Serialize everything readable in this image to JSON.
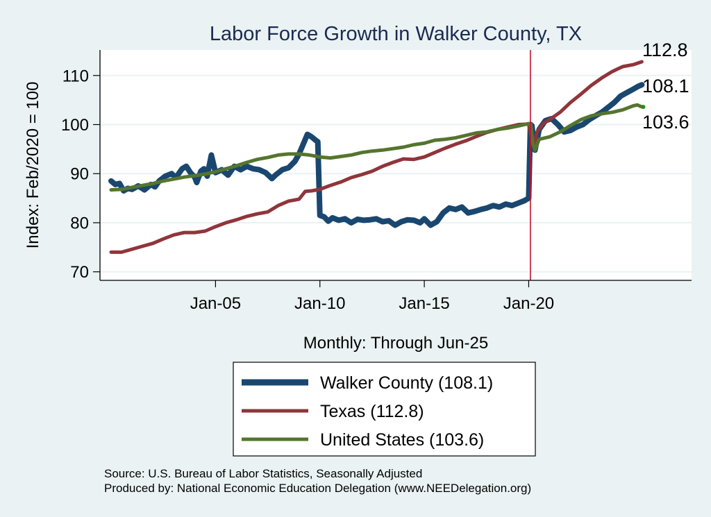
{
  "chart_data": {
    "type": "line",
    "title": "Labor Force Growth in Walker  County, TX",
    "xlabel": "Monthly: Through Jun-25",
    "ylabel": "Index: Feb/2020 = 100",
    "xlim": [
      1999.5,
      2027.8
    ],
    "ylim": [
      68.4,
      115.2
    ],
    "x_ticks": [
      {
        "value": 2005,
        "label": "Jan-05"
      },
      {
        "value": 2010,
        "label": "Jan-10"
      },
      {
        "value": 2015,
        "label": "Jan-15"
      },
      {
        "value": 2020,
        "label": "Jan-20"
      }
    ],
    "y_ticks": [
      70,
      80,
      90,
      100,
      110
    ],
    "grid": true,
    "reference_line": {
      "x": 2020.08,
      "color": "#c8102e"
    },
    "series": [
      {
        "name": "Walker  County",
        "legend": "Walker  County (108.1)",
        "end_label": "108.1",
        "color": "#1a476f",
        "x": [
          2000.0,
          2000.2,
          2000.4,
          2000.6,
          2000.8,
          2001.0,
          2001.3,
          2001.6,
          2001.9,
          2002.1,
          2002.3,
          2002.6,
          2002.9,
          2003.1,
          2003.4,
          2003.6,
          2003.8,
          2004.0,
          2004.1,
          2004.3,
          2004.45,
          2004.6,
          2004.8,
          2005.0,
          2005.3,
          2005.6,
          2005.9,
          2006.2,
          2006.5,
          2006.8,
          2007.1,
          2007.4,
          2007.7,
          2007.9,
          2008.2,
          2008.5,
          2008.8,
          2009.0,
          2009.2,
          2009.4,
          2009.6,
          2009.8,
          2009.9,
          2010.0,
          2010.2,
          2010.4,
          2010.6,
          2010.9,
          2011.2,
          2011.5,
          2011.8,
          2012.1,
          2012.4,
          2012.7,
          2013.0,
          2013.3,
          2013.6,
          2013.9,
          2014.2,
          2014.5,
          2014.8,
          2015.0,
          2015.3,
          2015.6,
          2015.9,
          2016.2,
          2016.5,
          2016.8,
          2017.1,
          2017.4,
          2017.7,
          2018.0,
          2018.3,
          2018.6,
          2018.9,
          2019.2,
          2019.5,
          2019.8,
          2020.0,
          2020.08,
          2020.15,
          2020.3,
          2020.5,
          2020.8,
          2021.1,
          2021.4,
          2021.7,
          2022.0,
          2022.3,
          2022.6,
          2022.9,
          2023.2,
          2023.5,
          2023.8,
          2024.1,
          2024.4,
          2024.7,
          2025.0,
          2025.25,
          2025.42
        ],
        "y": [
          88.5,
          87.8,
          88.0,
          86.5,
          87.0,
          86.8,
          87.5,
          86.7,
          87.8,
          87.3,
          88.5,
          89.5,
          90.0,
          89.2,
          91.0,
          91.5,
          90.2,
          89.3,
          88.2,
          90.5,
          91.0,
          89.5,
          93.8,
          90.2,
          90.8,
          89.7,
          91.5,
          90.8,
          91.5,
          91.0,
          90.8,
          90.2,
          89.0,
          89.8,
          90.8,
          91.2,
          92.5,
          94.0,
          96.0,
          98.0,
          97.5,
          96.8,
          96.5,
          81.5,
          81.2,
          80.3,
          81.0,
          80.5,
          80.8,
          80.0,
          80.7,
          80.5,
          80.6,
          80.8,
          80.2,
          80.4,
          79.5,
          80.2,
          80.6,
          80.5,
          80.0,
          80.8,
          79.5,
          80.2,
          82.0,
          83.0,
          82.7,
          83.2,
          82.0,
          82.3,
          82.7,
          83.0,
          83.5,
          83.2,
          83.8,
          83.5,
          84.0,
          84.5,
          85.0,
          100.0,
          99.8,
          94.8,
          99.0,
          100.8,
          101.2,
          100.0,
          98.5,
          98.8,
          99.5,
          100.0,
          101.0,
          101.8,
          102.5,
          103.5,
          104.5,
          105.8,
          106.5,
          107.2,
          107.8,
          108.1
        ]
      },
      {
        "name": "Texas",
        "legend": "Texas (112.8)",
        "end_label": "112.8",
        "color": "#90353b",
        "x": [
          2000.0,
          2000.5,
          2001.0,
          2001.5,
          2002.0,
          2002.5,
          2003.0,
          2003.5,
          2004.0,
          2004.5,
          2005.0,
          2005.5,
          2006.0,
          2006.5,
          2007.0,
          2007.5,
          2008.0,
          2008.5,
          2009.0,
          2009.3,
          2009.6,
          2010.0,
          2010.5,
          2011.0,
          2011.5,
          2012.0,
          2012.5,
          2013.0,
          2013.5,
          2014.0,
          2014.5,
          2015.0,
          2015.5,
          2016.0,
          2016.5,
          2017.0,
          2017.5,
          2018.0,
          2018.5,
          2019.0,
          2019.5,
          2020.0,
          2020.1,
          2020.25,
          2020.4,
          2020.7,
          2021.0,
          2021.5,
          2022.0,
          2022.5,
          2023.0,
          2023.5,
          2024.0,
          2024.5,
          2025.0,
          2025.42
        ],
        "y": [
          74.0,
          74.0,
          74.6,
          75.2,
          75.8,
          76.7,
          77.5,
          78.0,
          78.0,
          78.3,
          79.2,
          80.0,
          80.6,
          81.3,
          81.8,
          82.2,
          83.5,
          84.4,
          84.8,
          86.4,
          86.5,
          86.8,
          87.6,
          88.3,
          89.2,
          89.8,
          90.5,
          91.5,
          92.3,
          93.0,
          92.9,
          93.4,
          94.3,
          95.2,
          96.0,
          96.7,
          97.6,
          98.4,
          99.0,
          99.5,
          100.0,
          100.1,
          98.0,
          95.5,
          98.5,
          100.2,
          101.0,
          102.5,
          104.5,
          106.2,
          108.0,
          109.5,
          110.8,
          111.8,
          112.2,
          112.8
        ]
      },
      {
        "name": "United States",
        "legend": "United States (103.6)",
        "end_label": "103.6",
        "color": "#55752f",
        "x": [
          2000.0,
          2000.5,
          2001.0,
          2001.5,
          2002.0,
          2002.5,
          2003.0,
          2003.5,
          2004.0,
          2004.5,
          2005.0,
          2005.5,
          2006.0,
          2006.5,
          2007.0,
          2007.5,
          2008.0,
          2008.5,
          2009.0,
          2009.5,
          2010.0,
          2010.5,
          2011.0,
          2011.5,
          2012.0,
          2012.5,
          2013.0,
          2013.5,
          2014.0,
          2014.5,
          2015.0,
          2015.5,
          2016.0,
          2016.5,
          2017.0,
          2017.5,
          2018.0,
          2018.5,
          2019.0,
          2019.5,
          2020.0,
          2020.1,
          2020.2,
          2020.3,
          2020.5,
          2021.0,
          2021.5,
          2022.0,
          2022.5,
          2023.0,
          2023.5,
          2024.0,
          2024.5,
          2025.0,
          2025.2,
          2025.42
        ],
        "y": [
          86.7,
          86.8,
          87.2,
          87.6,
          88.0,
          88.5,
          88.9,
          89.3,
          89.6,
          89.9,
          90.4,
          91.0,
          91.6,
          92.3,
          92.9,
          93.3,
          93.8,
          94.0,
          94.0,
          93.8,
          93.4,
          93.2,
          93.5,
          93.8,
          94.3,
          94.6,
          94.8,
          95.1,
          95.4,
          95.9,
          96.2,
          96.8,
          97.0,
          97.3,
          97.8,
          98.3,
          98.5,
          99.0,
          99.3,
          99.7,
          100.2,
          100.0,
          96.0,
          94.8,
          97.0,
          97.5,
          98.5,
          99.8,
          101.0,
          101.8,
          102.2,
          102.5,
          103.0,
          103.8,
          104.0,
          103.6
        ]
      }
    ],
    "notes": [
      "Source: U.S. Bureau of Labor Statistics, Seasonally Adjusted",
      "Produced by: National Economic Education Delegation (www.NEEDelegation.org)"
    ]
  }
}
